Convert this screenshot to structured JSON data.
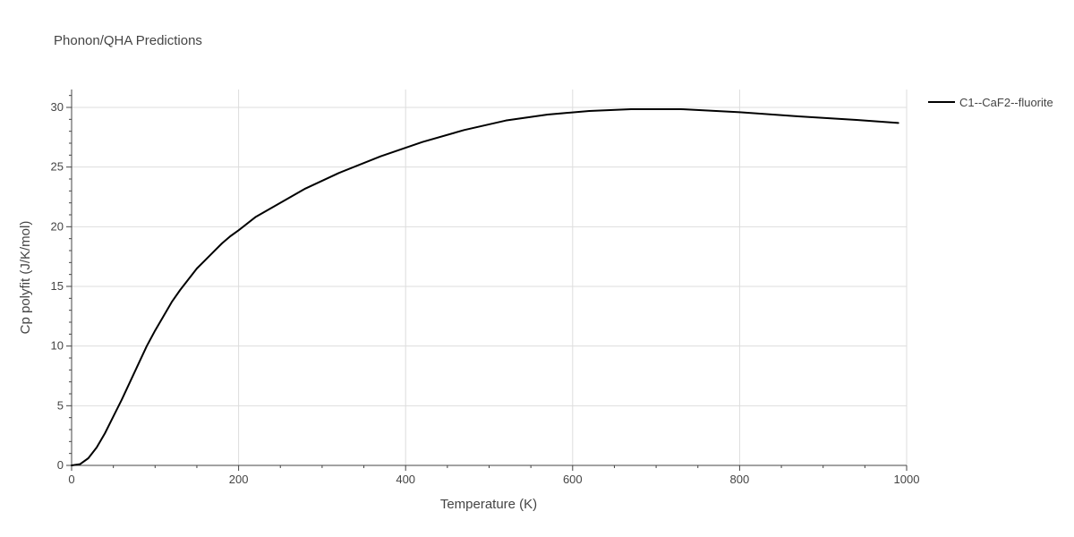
{
  "chart_data": {
    "type": "line",
    "title": "Phonon/QHA Predictions",
    "xlabel": "Temperature (K)",
    "ylabel": "Cp polyfit (J/K/mol)",
    "xlim": [
      0,
      1000
    ],
    "ylim": [
      0,
      31.5
    ],
    "x_ticks": [
      0,
      200,
      400,
      600,
      800,
      1000
    ],
    "y_ticks": [
      0,
      5,
      10,
      15,
      20,
      25,
      30
    ],
    "grid": true,
    "legend_position": "top-right",
    "colors": {
      "line": "#000000",
      "grid": "#dddddd",
      "axis": "#444444"
    },
    "series": [
      {
        "name": "C1--CaF2--fluorite",
        "x": [
          0,
          10,
          20,
          30,
          40,
          50,
          60,
          70,
          80,
          90,
          100,
          110,
          120,
          130,
          140,
          150,
          160,
          170,
          180,
          190,
          200,
          220,
          250,
          280,
          320,
          370,
          420,
          470,
          520,
          570,
          620,
          670,
          730,
          800,
          870,
          940,
          990
        ],
        "y": [
          0,
          0.1,
          0.6,
          1.5,
          2.7,
          4.1,
          5.5,
          7.0,
          8.5,
          10.0,
          11.3,
          12.5,
          13.7,
          14.7,
          15.6,
          16.5,
          17.2,
          17.9,
          18.6,
          19.2,
          19.7,
          20.8,
          22.0,
          23.2,
          24.5,
          25.9,
          27.1,
          28.1,
          28.9,
          29.4,
          29.7,
          29.85,
          29.85,
          29.6,
          29.25,
          28.95,
          28.7
        ]
      }
    ]
  }
}
